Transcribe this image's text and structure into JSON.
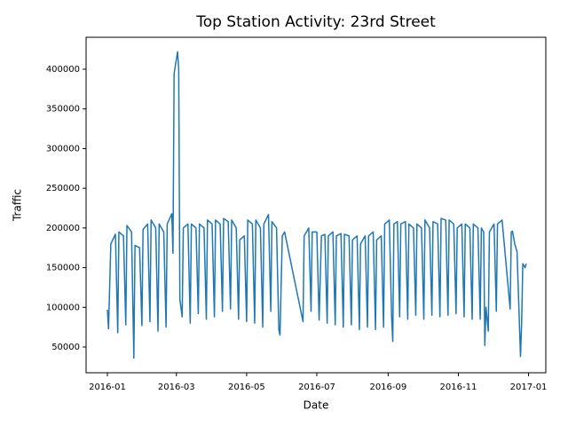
{
  "chart_data": {
    "type": "line",
    "title": "Top Station Activity: 23rd Street",
    "xlabel": "Date",
    "ylabel": "Traffic",
    "x": [
      0,
      1,
      3,
      7,
      9,
      10,
      14,
      16,
      17,
      21,
      23,
      24,
      28,
      30,
      31,
      35,
      37,
      38,
      42,
      44,
      45,
      49,
      51,
      52,
      56,
      57,
      58,
      61,
      62,
      63,
      65,
      66,
      70,
      72,
      73,
      77,
      79,
      80,
      84,
      86,
      87,
      91,
      93,
      94,
      98,
      100,
      101,
      105,
      107,
      108,
      112,
      114,
      115,
      119,
      121,
      122,
      126,
      128,
      129,
      133,
      135,
      136,
      140,
      142,
      143,
      147,
      149,
      150,
      152,
      154,
      170,
      171,
      175,
      177,
      178,
      182,
      184,
      186,
      189,
      191,
      192,
      196,
      198,
      199,
      203,
      205,
      206,
      210,
      212,
      213,
      217,
      219,
      220,
      224,
      226,
      227,
      231,
      233,
      234,
      238,
      240,
      241,
      245,
      247,
      248,
      249,
      252,
      254,
      255,
      259,
      261,
      262,
      266,
      268,
      269,
      273,
      275,
      276,
      280,
      282,
      283,
      287,
      289,
      290,
      294,
      296,
      297,
      301,
      303,
      304,
      308,
      310,
      311,
      315,
      317,
      318,
      322,
      324,
      325,
      327,
      328,
      329,
      331,
      332,
      336,
      338,
      339,
      343,
      350,
      351,
      352,
      354,
      356,
      359,
      360,
      361,
      363,
      364
    ],
    "series": [
      {
        "color": "#1f77b4",
        "values": [
          97000,
          73000,
          180000,
          192000,
          68000,
          195000,
          190000,
          78000,
          203000,
          195000,
          36000,
          178000,
          175000,
          77000,
          198000,
          205000,
          82000,
          210000,
          200000,
          70000,
          205000,
          195000,
          75000,
          205000,
          218000,
          168000,
          395000,
          422000,
          400000,
          110000,
          88000,
          200000,
          205000,
          80000,
          205000,
          200000,
          92000,
          205000,
          200000,
          85000,
          210000,
          205000,
          88000,
          210000,
          205000,
          95000,
          212000,
          208000,
          98000,
          210000,
          200000,
          85000,
          185000,
          190000,
          82000,
          210000,
          205000,
          80000,
          210000,
          200000,
          75000,
          205000,
          217000,
          95000,
          208000,
          200000,
          72000,
          65000,
          190000,
          195000,
          82000,
          190000,
          200000,
          95000,
          195000,
          195000,
          84000,
          190000,
          192000,
          80000,
          190000,
          195000,
          78000,
          190000,
          193000,
          75000,
          192000,
          190000,
          78000,
          185000,
          190000,
          72000,
          180000,
          190000,
          75000,
          190000,
          195000,
          72000,
          185000,
          190000,
          75000,
          205000,
          210000,
          88000,
          57000,
          205000,
          208000,
          88000,
          205000,
          208000,
          85000,
          205000,
          200000,
          90000,
          205000,
          200000,
          85000,
          210000,
          200000,
          90000,
          208000,
          205000,
          88000,
          212000,
          210000,
          90000,
          210000,
          205000,
          92000,
          200000,
          205000,
          88000,
          205000,
          200000,
          85000,
          205000,
          200000,
          85000,
          200000,
          195000,
          52000,
          100000,
          70000,
          195000,
          205000,
          95000,
          205000,
          210000,
          98000,
          195000,
          196000,
          180000,
          170000,
          38000,
          80000,
          155000,
          150000,
          155000
        ]
      }
    ],
    "xlim": [
      -18.5,
      381
    ],
    "xticks": [
      {
        "value": 0,
        "label": "2016-01"
      },
      {
        "value": 60,
        "label": "2016-03"
      },
      {
        "value": 121,
        "label": "2016-05"
      },
      {
        "value": 182,
        "label": "2016-07"
      },
      {
        "value": 244,
        "label": "2016-09"
      },
      {
        "value": 305,
        "label": "2016-11"
      },
      {
        "value": 366,
        "label": "2017-01"
      }
    ],
    "ylim": [
      17572,
      440256
    ],
    "yticks": [
      50000,
      100000,
      150000,
      200000,
      250000,
      300000,
      350000,
      400000
    ]
  }
}
